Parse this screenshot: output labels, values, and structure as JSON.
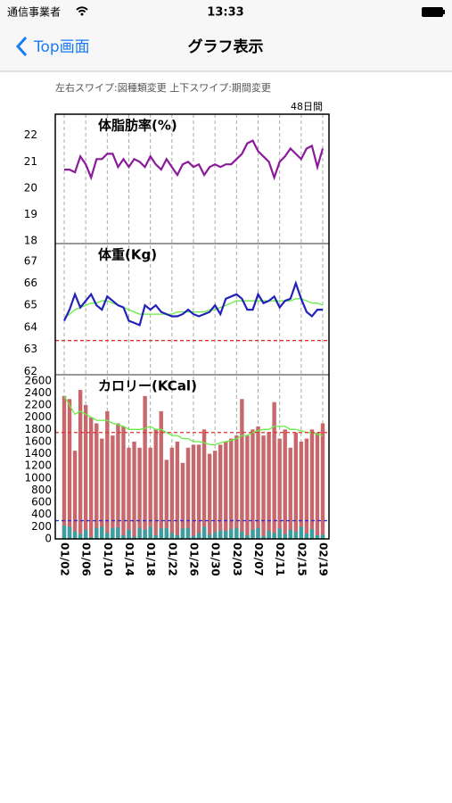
{
  "status_bar": {
    "carrier": "通信事業者",
    "time": "13:33"
  },
  "nav": {
    "back": "Top画面",
    "title": "グラフ表示"
  },
  "hint": "左右スワイプ:図種類変更 上下スワイプ:期間変更",
  "period": "48日間",
  "chart_data": [
    {
      "type": "line",
      "title": "体脂肪率(%)",
      "ylim": [
        17.9,
        22.8
      ],
      "yticks": [
        18,
        19,
        20,
        21,
        22
      ],
      "series": [
        {
          "color": "#8b1a9a",
          "style": "line",
          "values": [
            20.7,
            20.7,
            20.6,
            21.2,
            20.9,
            20.4,
            21.1,
            21.1,
            21.3,
            21.3,
            20.8,
            21.1,
            20.8,
            21.1,
            21.0,
            20.8,
            21.2,
            20.9,
            20.7,
            21.1,
            20.8,
            20.5,
            20.9,
            21.0,
            20.8,
            20.9,
            20.5,
            20.8,
            20.9,
            20.8,
            20.9,
            20.9,
            21.1,
            21.3,
            21.7,
            21.8,
            21.4,
            21.2,
            21.0,
            20.4,
            21.0,
            21.2,
            21.5,
            21.3,
            21.1,
            21.5,
            21.6,
            20.8,
            21.5
          ]
        }
      ]
    },
    {
      "type": "line",
      "title": "体重(Kg)",
      "ylim": [
        61.85,
        67.8
      ],
      "yticks": [
        62,
        63,
        64,
        65,
        66,
        67
      ],
      "reference_lines": [
        {
          "value": 63.4,
          "color": "#e03030"
        }
      ],
      "series": [
        {
          "color": "#66ee44",
          "style": "line",
          "values": [
            64.4,
            64.6,
            64.8,
            64.9,
            65.0,
            65.1,
            65.1,
            65.2,
            65.2,
            65.1,
            65.0,
            64.9,
            64.8,
            64.7,
            64.6,
            64.6,
            64.6,
            64.6,
            64.6,
            64.6,
            64.6,
            64.7,
            64.7,
            64.7,
            64.7,
            64.7,
            64.7,
            64.8,
            64.8,
            64.9,
            65.0,
            65.1,
            65.2,
            65.2,
            65.2,
            65.2,
            65.2,
            65.2,
            65.2,
            65.2,
            65.2,
            65.2,
            65.2,
            65.3,
            65.3,
            65.2,
            65.1,
            65.1,
            65.0
          ]
        },
        {
          "color": "#2222bb",
          "style": "line",
          "values": [
            64.3,
            64.8,
            65.5,
            64.9,
            65.2,
            65.5,
            65.0,
            64.8,
            65.4,
            65.2,
            65.0,
            64.9,
            64.3,
            64.2,
            64.1,
            65.0,
            64.8,
            65.0,
            64.7,
            64.6,
            64.5,
            64.5,
            64.6,
            64.8,
            64.6,
            64.5,
            64.6,
            64.7,
            65.0,
            64.6,
            65.3,
            65.4,
            65.5,
            65.3,
            64.8,
            64.8,
            65.5,
            65.1,
            65.2,
            65.4,
            64.9,
            65.2,
            65.3,
            66.0,
            65.3,
            64.7,
            64.5,
            64.8,
            64.8
          ]
        }
      ]
    },
    {
      "type": "bar",
      "title": "カロリー(KCal)",
      "ylim": [
        0,
        2700
      ],
      "yticks": [
        0,
        200,
        400,
        600,
        800,
        1000,
        1200,
        1400,
        1600,
        1800,
        2000,
        2200,
        2400,
        2600
      ],
      "categories": [
        "01/02",
        null,
        null,
        null,
        "01/06",
        null,
        null,
        null,
        "01/10",
        null,
        null,
        null,
        "01/14",
        null,
        null,
        null,
        "01/18",
        null,
        null,
        null,
        "01/22",
        null,
        null,
        null,
        "01/26",
        null,
        null,
        null,
        "01/30",
        null,
        null,
        null,
        "02/03",
        null,
        null,
        null,
        "02/07",
        null,
        null,
        null,
        "02/11",
        null,
        null,
        null,
        "02/15",
        null,
        null,
        null,
        "02/19"
      ],
      "reference_lines": [
        {
          "value": 1750,
          "color": "#e03030"
        },
        {
          "value": 300,
          "color": "#3333cc"
        }
      ],
      "series": [
        {
          "color": "#c8686c",
          "style": "bar",
          "values": [
            2350,
            2300,
            1450,
            2450,
            2200,
            2000,
            1900,
            1650,
            2100,
            1700,
            1900,
            1850,
            1500,
            1600,
            1500,
            2350,
            1500,
            1800,
            2100,
            1300,
            1500,
            1600,
            1250,
            1500,
            1550,
            1550,
            1800,
            1400,
            1450,
            1550,
            1600,
            1650,
            1700,
            2300,
            1700,
            1800,
            1850,
            1700,
            1750,
            2250,
            1650,
            1800,
            1500,
            1750,
            1600,
            1650,
            1800,
            1750,
            1900
          ]
        },
        {
          "color": "#3a9fa0",
          "style": "bar",
          "values": [
            220,
            200,
            120,
            80,
            150,
            30,
            180,
            200,
            100,
            180,
            190,
            60,
            150,
            40,
            180,
            150,
            200,
            60,
            170,
            180,
            100,
            60,
            170,
            180,
            50,
            100,
            200,
            70,
            110,
            140,
            130,
            160,
            180,
            120,
            60,
            150,
            180,
            50,
            130,
            100,
            170,
            80,
            150,
            120,
            200,
            90,
            160,
            60,
            70
          ]
        },
        {
          "color": "#66ee44",
          "style": "line",
          "values": [
            2350,
            2200,
            2050,
            2100,
            2050,
            2000,
            1950,
            1950,
            1950,
            1900,
            1880,
            1850,
            1800,
            1800,
            1800,
            1820,
            1850,
            1800,
            1800,
            1750,
            1700,
            1700,
            1650,
            1650,
            1600,
            1600,
            1580,
            1550,
            1550,
            1580,
            1600,
            1620,
            1650,
            1700,
            1700,
            1750,
            1780,
            1800,
            1800,
            1850,
            1850,
            1850,
            1800,
            1800,
            1780,
            1750,
            1750,
            1720,
            1700
          ]
        }
      ]
    }
  ]
}
